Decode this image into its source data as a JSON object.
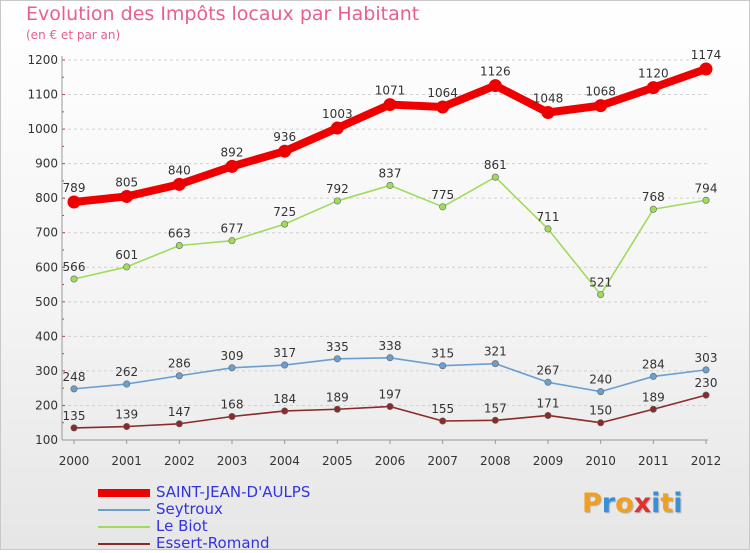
{
  "header": {
    "title": "Evolution des Impôts locaux par Habitant",
    "subtitle": "(en € et par an)"
  },
  "logo": {
    "text": "Proxiti",
    "colors": [
      "#f0a020",
      "#3a8fd8",
      "#f0a020",
      "#e03030",
      "#3a8fd8",
      "#f0a020",
      "#3a8fd8"
    ]
  },
  "chart_data": {
    "type": "line",
    "title": "Evolution des Impôts locaux par Habitant",
    "subtitle": "(en € et par an)",
    "x": [
      "2000",
      "2001",
      "2002",
      "2003",
      "2004",
      "2005",
      "2006",
      "2007",
      "2008",
      "2009",
      "2010",
      "2011",
      "2012"
    ],
    "ylim": [
      100,
      1200
    ],
    "yticks": [
      100,
      200,
      300,
      400,
      500,
      600,
      700,
      800,
      900,
      1000,
      1100,
      1200
    ],
    "grid": "horizontal dashed",
    "legend_position": "bottom-left",
    "series": [
      {
        "name": "SAINT-JEAN-D'AULPS",
        "color": "#ee0000",
        "width": "thick",
        "values": [
          789,
          805,
          840,
          892,
          936,
          1003,
          1071,
          1064,
          1126,
          1048,
          1068,
          1120,
          1174
        ]
      },
      {
        "name": "Seytroux",
        "color": "#6a9fd0",
        "width": "thin",
        "values": [
          248,
          262,
          286,
          309,
          317,
          335,
          338,
          315,
          321,
          267,
          240,
          284,
          303
        ]
      },
      {
        "name": "Le Biot",
        "color": "#9fdc5a",
        "width": "thin",
        "values": [
          566,
          601,
          663,
          677,
          725,
          792,
          837,
          775,
          861,
          711,
          521,
          768,
          794
        ]
      },
      {
        "name": "Essert-Romand",
        "color": "#8a2a2a",
        "width": "thin",
        "values": [
          135,
          139,
          147,
          168,
          184,
          189,
          197,
          155,
          157,
          171,
          150,
          189,
          230
        ]
      }
    ],
    "legend_label_colors": [
      "#3333dd",
      "#3333dd",
      "#3333dd",
      "#3333dd"
    ]
  }
}
